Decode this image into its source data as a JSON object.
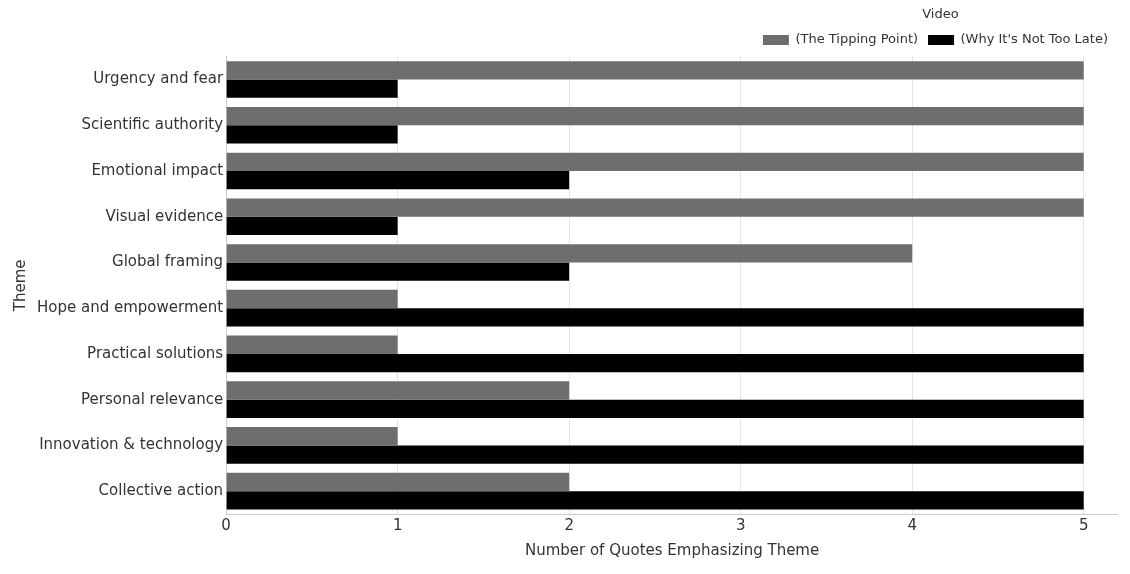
{
  "chart_data": {
    "type": "bar",
    "orientation": "horizontal",
    "xlabel": "Number of Quotes Emphasizing Theme",
    "ylabel": "Theme",
    "legend_title": "Video",
    "legend": "top right",
    "grid": "x",
    "categories": [
      "Urgency and fear",
      "Scientific authority",
      "Emotional impact",
      "Visual evidence",
      "Global framing",
      "Hope and empowerment",
      "Practical solutions",
      "Personal relevance",
      "Innovation & technology",
      "Collective action"
    ],
    "series": [
      {
        "name": "(The Tipping Point)",
        "color": "#6e6e6e",
        "values": [
          5,
          5,
          5,
          5,
          4,
          1,
          1,
          2,
          1,
          2
        ]
      },
      {
        "name": "(Why It's Not Too Late)",
        "color": "#000000",
        "values": [
          1,
          1,
          2,
          1,
          2,
          5,
          5,
          5,
          5,
          5
        ]
      }
    ],
    "xlim": [
      0,
      5.2
    ],
    "xticks": [
      0,
      1,
      2,
      3,
      4,
      5
    ]
  }
}
